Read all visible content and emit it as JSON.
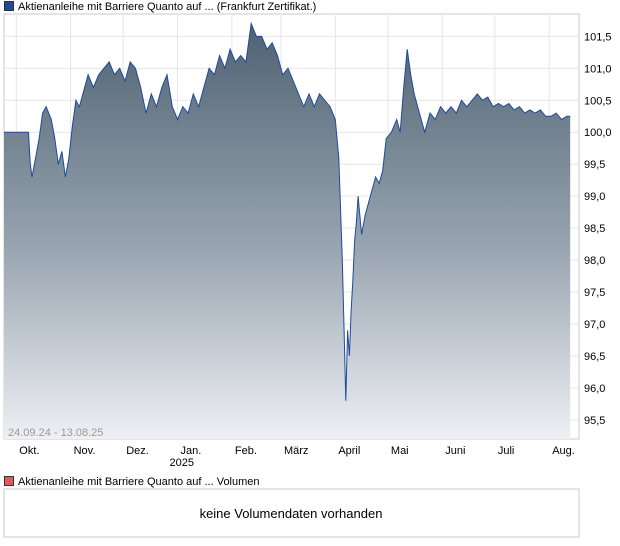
{
  "legend_price": "Aktienanleihe mit Barriere Quanto auf ... (Frankfurt Zertifikat.)",
  "legend_volume": "Aktienanleihe mit Barriere Quanto auf ... Volumen",
  "date_range": "24.09.24 - 13.08.25",
  "no_volume_text": "keine Volumendaten vorhanden",
  "colors": {
    "line": "#1f4a9c",
    "fill_top": "#4f6272",
    "fill_bottom": "#eef0f4",
    "legend_price": "#1f4a9c",
    "legend_volume": "#e05a5a"
  },
  "chart_data": {
    "type": "area",
    "title": "Aktienanleihe mit Barriere Quanto auf ... (Frankfurt Zertifikat.)",
    "y_ticks": [
      "101,5",
      "101,0",
      "100,5",
      "100,0",
      "99,5",
      "99,0",
      "98,5",
      "98,0",
      "97,5",
      "97,0",
      "96,5",
      "96,0",
      "95,5"
    ],
    "y_tick_values": [
      101.5,
      101.0,
      100.5,
      100.0,
      99.5,
      99.0,
      98.5,
      98.0,
      97.5,
      97.0,
      96.5,
      96.0,
      95.5
    ],
    "ylim": [
      95.2,
      101.85
    ],
    "x_ticks": [
      "Okt.",
      "Nov.",
      "Dez.",
      "Jan.",
      "Feb.",
      "März",
      "April",
      "Mai",
      "Juni",
      "Juli",
      "Aug."
    ],
    "x_tick_values": [
      "2024-10-01",
      "2024-11-01",
      "2024-12-01",
      "2025-01-01",
      "2025-02-01",
      "2025-03-01",
      "2025-04-01",
      "2025-05-01",
      "2025-06-01",
      "2025-07-01",
      "2025-08-01"
    ],
    "x_sub_label": "2025",
    "grid": true,
    "series": [
      {
        "name": "Aktienanleihe mit Barriere Quanto auf ... (Frankfurt Zertifikat.)",
        "points": [
          [
            "2024-09-24",
            100.0
          ],
          [
            "2024-10-08",
            100.0
          ],
          [
            "2024-10-09",
            99.5
          ],
          [
            "2024-10-10",
            99.3
          ],
          [
            "2024-10-12",
            99.6
          ],
          [
            "2024-10-14",
            99.9
          ],
          [
            "2024-10-16",
            100.3
          ],
          [
            "2024-10-18",
            100.4
          ],
          [
            "2024-10-21",
            100.2
          ],
          [
            "2024-10-23",
            99.9
          ],
          [
            "2024-10-25",
            99.5
          ],
          [
            "2024-10-27",
            99.7
          ],
          [
            "2024-10-29",
            99.3
          ],
          [
            "2024-10-31",
            99.6
          ],
          [
            "2024-11-02",
            100.1
          ],
          [
            "2024-11-04",
            100.5
          ],
          [
            "2024-11-06",
            100.4
          ],
          [
            "2024-11-08",
            100.6
          ],
          [
            "2024-11-11",
            100.9
          ],
          [
            "2024-11-14",
            100.7
          ],
          [
            "2024-11-17",
            100.9
          ],
          [
            "2024-11-20",
            101.0
          ],
          [
            "2024-11-23",
            101.1
          ],
          [
            "2024-11-26",
            100.9
          ],
          [
            "2024-11-29",
            101.0
          ],
          [
            "2024-12-02",
            100.8
          ],
          [
            "2024-12-05",
            101.1
          ],
          [
            "2024-12-08",
            101.0
          ],
          [
            "2024-12-11",
            100.7
          ],
          [
            "2024-12-14",
            100.3
          ],
          [
            "2024-12-17",
            100.6
          ],
          [
            "2024-12-20",
            100.4
          ],
          [
            "2024-12-23",
            100.7
          ],
          [
            "2024-12-26",
            100.9
          ],
          [
            "2024-12-29",
            100.4
          ],
          [
            "2025-01-01",
            100.2
          ],
          [
            "2025-01-04",
            100.4
          ],
          [
            "2025-01-07",
            100.3
          ],
          [
            "2025-01-10",
            100.6
          ],
          [
            "2025-01-13",
            100.4
          ],
          [
            "2025-01-16",
            100.7
          ],
          [
            "2025-01-19",
            101.0
          ],
          [
            "2025-01-22",
            100.9
          ],
          [
            "2025-01-25",
            101.2
          ],
          [
            "2025-01-28",
            101.0
          ],
          [
            "2025-01-31",
            101.3
          ],
          [
            "2025-02-03",
            101.1
          ],
          [
            "2025-02-06",
            101.2
          ],
          [
            "2025-02-09",
            101.1
          ],
          [
            "2025-02-12",
            101.7
          ],
          [
            "2025-02-15",
            101.5
          ],
          [
            "2025-02-18",
            101.5
          ],
          [
            "2025-02-21",
            101.3
          ],
          [
            "2025-02-24",
            101.4
          ],
          [
            "2025-02-27",
            101.2
          ],
          [
            "2025-03-02",
            100.9
          ],
          [
            "2025-03-05",
            101.0
          ],
          [
            "2025-03-08",
            100.8
          ],
          [
            "2025-03-11",
            100.6
          ],
          [
            "2025-03-14",
            100.4
          ],
          [
            "2025-03-17",
            100.6
          ],
          [
            "2025-03-20",
            100.4
          ],
          [
            "2025-03-23",
            100.6
          ],
          [
            "2025-03-26",
            100.5
          ],
          [
            "2025-03-29",
            100.4
          ],
          [
            "2025-04-01",
            100.2
          ],
          [
            "2025-04-03",
            99.6
          ],
          [
            "2025-04-05",
            98.0
          ],
          [
            "2025-04-06",
            96.9
          ],
          [
            "2025-04-07",
            95.8
          ],
          [
            "2025-04-08",
            96.9
          ],
          [
            "2025-04-09",
            96.5
          ],
          [
            "2025-04-10",
            97.2
          ],
          [
            "2025-04-11",
            97.7
          ],
          [
            "2025-04-12",
            98.3
          ],
          [
            "2025-04-13",
            98.6
          ],
          [
            "2025-04-14",
            99.0
          ],
          [
            "2025-04-16",
            98.4
          ],
          [
            "2025-04-18",
            98.7
          ],
          [
            "2025-04-20",
            98.9
          ],
          [
            "2025-04-22",
            99.1
          ],
          [
            "2025-04-24",
            99.3
          ],
          [
            "2025-04-26",
            99.2
          ],
          [
            "2025-04-28",
            99.4
          ],
          [
            "2025-04-30",
            99.9
          ],
          [
            "2025-05-03",
            100.0
          ],
          [
            "2025-05-06",
            100.2
          ],
          [
            "2025-05-08",
            100.0
          ],
          [
            "2025-05-10",
            100.7
          ],
          [
            "2025-05-12",
            101.3
          ],
          [
            "2025-05-14",
            100.9
          ],
          [
            "2025-05-16",
            100.6
          ],
          [
            "2025-05-18",
            100.4
          ],
          [
            "2025-05-20",
            100.2
          ],
          [
            "2025-05-22",
            100.0
          ],
          [
            "2025-05-25",
            100.3
          ],
          [
            "2025-05-28",
            100.2
          ],
          [
            "2025-05-31",
            100.4
          ],
          [
            "2025-06-03",
            100.3
          ],
          [
            "2025-06-06",
            100.4
          ],
          [
            "2025-06-09",
            100.3
          ],
          [
            "2025-06-12",
            100.5
          ],
          [
            "2025-06-15",
            100.4
          ],
          [
            "2025-06-18",
            100.5
          ],
          [
            "2025-06-21",
            100.6
          ],
          [
            "2025-06-24",
            100.5
          ],
          [
            "2025-06-27",
            100.55
          ],
          [
            "2025-06-30",
            100.4
          ],
          [
            "2025-07-03",
            100.45
          ],
          [
            "2025-07-06",
            100.4
          ],
          [
            "2025-07-09",
            100.45
          ],
          [
            "2025-07-12",
            100.35
          ],
          [
            "2025-07-15",
            100.4
          ],
          [
            "2025-07-18",
            100.3
          ],
          [
            "2025-07-21",
            100.35
          ],
          [
            "2025-07-24",
            100.3
          ],
          [
            "2025-07-27",
            100.35
          ],
          [
            "2025-07-30",
            100.25
          ],
          [
            "2025-08-02",
            100.25
          ],
          [
            "2025-08-05",
            100.3
          ],
          [
            "2025-08-08",
            100.2
          ],
          [
            "2025-08-11",
            100.25
          ],
          [
            "2025-08-13",
            100.25
          ]
        ]
      }
    ]
  }
}
